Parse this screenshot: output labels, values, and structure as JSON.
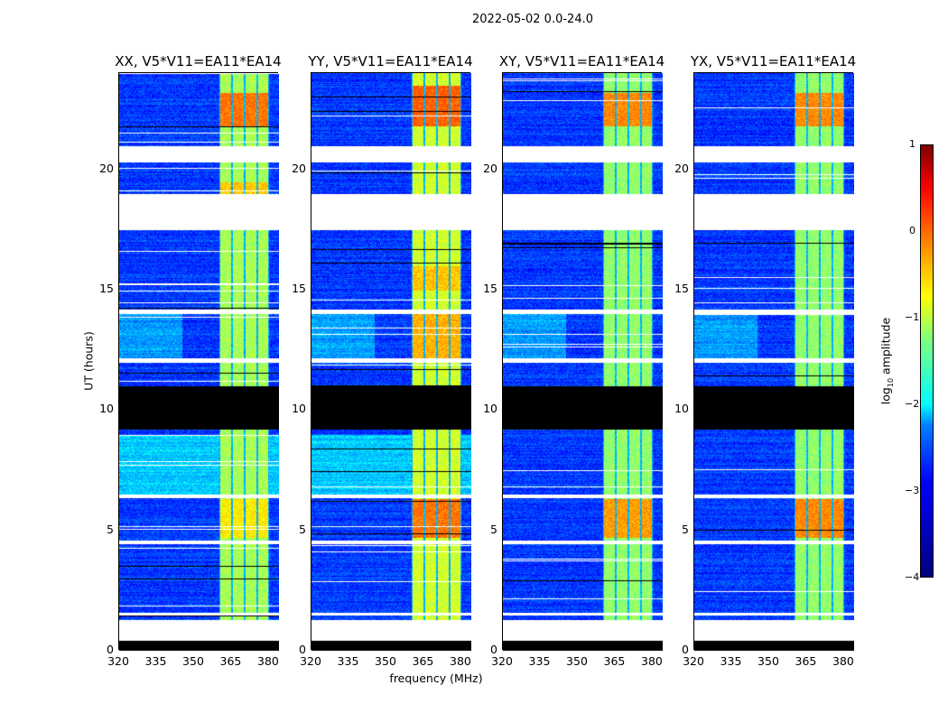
{
  "chart_data": {
    "type": "heatmap",
    "title": "2022-05-02 0.0-24.0",
    "xlabel": "frequency (MHz)",
    "ylabel": "UT (hours)",
    "xlim": [
      320,
      384
    ],
    "ylim": [
      0,
      24
    ],
    "xticks": [
      "320",
      "335",
      "350",
      "365",
      "380"
    ],
    "xtick_values": [
      320,
      335,
      350,
      365,
      380
    ],
    "yticks": [
      "0",
      "5",
      "10",
      "15",
      "20"
    ],
    "ytick_values": [
      0,
      5,
      10,
      15,
      20
    ],
    "panels": [
      {
        "title": "XX, V5*V11=EA11*EA14",
        "band_level": -1.3,
        "hot": [
          [
            21.8,
            23.2,
            -0.2
          ],
          [
            4.7,
            6.3,
            -0.8
          ],
          [
            19,
            19.5,
            -0.6
          ]
        ]
      },
      {
        "title": "YY, V5*V11=EA11*EA14",
        "band_level": -1.1,
        "hot": [
          [
            21.8,
            23.5,
            -0.1
          ],
          [
            4.7,
            6.3,
            -0.2
          ],
          [
            12.1,
            14.0,
            -0.5
          ],
          [
            15,
            16,
            -0.6
          ]
        ]
      },
      {
        "title": "XY, V5*V11=EA11*EA14",
        "band_level": -1.4,
        "hot": [
          [
            21.8,
            23.2,
            -0.3
          ],
          [
            4.7,
            6.3,
            -0.4
          ]
        ]
      },
      {
        "title": "YX, V5*V11=EA11*EA14",
        "band_level": -1.4,
        "hot": [
          [
            21.8,
            23.2,
            -0.3
          ],
          [
            4.7,
            6.3,
            -0.3
          ]
        ]
      }
    ],
    "no_data_hours": [
      [
        0,
        0.45
      ],
      [
        9.2,
        11.0
      ]
    ],
    "flagged_hours": [
      [
        0.45,
        1.3
      ],
      [
        17.5,
        19.0
      ],
      [
        20.3,
        21.0
      ],
      [
        4.45,
        4.6
      ],
      [
        6.35,
        6.5
      ],
      [
        12.0,
        12.15
      ],
      [
        14.0,
        14.2
      ],
      [
        1.5,
        1.6
      ]
    ],
    "rfi_band_MHz": [
      [
        360,
        365
      ],
      [
        365,
        370
      ],
      [
        370,
        375
      ],
      [
        375,
        380
      ]
    ],
    "background_level": -3.1,
    "colorbar": {
      "label": "log10 amplitude",
      "range": [
        -4,
        1
      ],
      "ticks": [
        "1",
        "0",
        "−1",
        "−2",
        "−3",
        "−4"
      ],
      "tick_values": [
        1,
        0,
        -1,
        -2,
        -3,
        -4
      ],
      "colormap": "jet"
    }
  }
}
